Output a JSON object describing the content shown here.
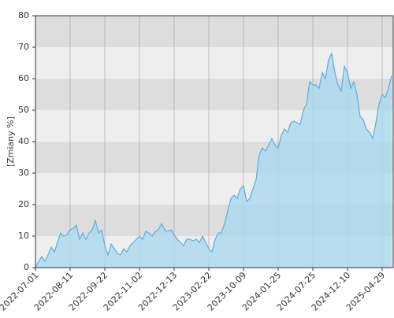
{
  "chart_data": {
    "type": "area",
    "y_label": "[Zmiany %]",
    "categories": [
      "2022-07-01",
      null,
      null,
      null,
      null,
      null,
      null,
      null,
      null,
      null,
      null,
      "2022-08-11",
      null,
      null,
      null,
      null,
      null,
      null,
      null,
      null,
      null,
      null,
      "2022-09-22",
      null,
      null,
      null,
      null,
      null,
      null,
      null,
      null,
      null,
      null,
      "2022-11-02",
      null,
      null,
      null,
      null,
      null,
      null,
      null,
      null,
      null,
      null,
      "2022-12-13",
      null,
      null,
      null,
      null,
      null,
      null,
      null,
      null,
      null,
      null,
      "2023-02-22",
      null,
      null,
      null,
      null,
      null,
      null,
      null,
      null,
      null,
      null,
      "2023-10-09",
      null,
      null,
      null,
      null,
      null,
      null,
      null,
      null,
      null,
      null,
      "2024-01-25",
      null,
      null,
      null,
      null,
      null,
      null,
      null,
      null,
      null,
      null,
      "2024-07-25",
      null,
      null,
      null,
      null,
      null,
      null,
      null,
      null,
      null,
      null,
      "2024-12-10",
      null,
      null,
      null,
      null,
      null,
      null,
      null,
      null,
      null,
      null,
      "2025-04-29",
      null,
      null,
      null
    ],
    "values": [
      0,
      2,
      3.5,
      2,
      4,
      6.5,
      5,
      8,
      11,
      10,
      10.5,
      12,
      12.5,
      13.5,
      9,
      11,
      9,
      11,
      12,
      15,
      11,
      12,
      7,
      4,
      7.5,
      6,
      4.5,
      4,
      6,
      5,
      7,
      8,
      9,
      10,
      9,
      11.5,
      11,
      10,
      11.5,
      12,
      14,
      12,
      11.5,
      12,
      10.5,
      9,
      8,
      7,
      9,
      9,
      8.5,
      9,
      8,
      10,
      8,
      6,
      5,
      9,
      11,
      11,
      14,
      18,
      22,
      23,
      22,
      25,
      26,
      21,
      22,
      25,
      28,
      36,
      38,
      37,
      39,
      41,
      39,
      38,
      42,
      44,
      43,
      46,
      46.5,
      46,
      45.5,
      50,
      52,
      59,
      58,
      58,
      57,
      62,
      60,
      66,
      68,
      62,
      58,
      56,
      64,
      62,
      57,
      59,
      55,
      48,
      47,
      44,
      43,
      41,
      46,
      52,
      55,
      54,
      57,
      61
    ],
    "color": "#5aafe0",
    "fill": "#a9d8ee",
    "ylim": [
      0,
      80
    ],
    "yticks": [
      0,
      10,
      20,
      30,
      40,
      50,
      60,
      70,
      80
    ],
    "grid": true
  }
}
